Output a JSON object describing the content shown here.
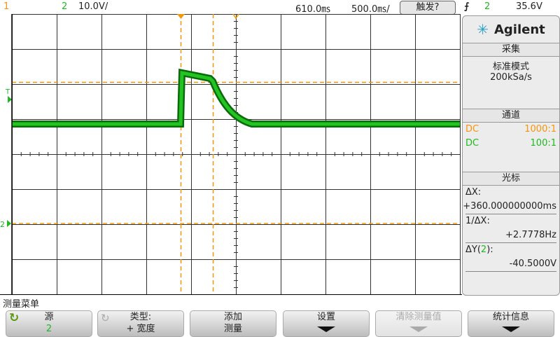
{
  "header": {
    "ch1": "1",
    "ch2": "2",
    "ch2_scale": "10.0V/",
    "time_offset": "610.0㎳",
    "time_scale": "500.0㎳/",
    "trigger_button": "触发?",
    "trigger_slope_icon": "rising-edge-icon",
    "trigger_source": "2",
    "trigger_level": "35.6V"
  },
  "colors": {
    "ch1": "#f5960a",
    "ch2": "#1fb81f",
    "cursor": "#f5960a"
  },
  "display": {
    "trigger_marker": "T",
    "ground_marker": "2"
  },
  "panel": {
    "brand": "Agilent",
    "acquire_title": "采集",
    "acquire_mode": "标准模式",
    "sample_rate": "200kSa/s",
    "channel_title": "通道",
    "channels": [
      {
        "coupling": "DC",
        "probe": "1000:1"
      },
      {
        "coupling": "DC",
        "probe": "100:1"
      }
    ],
    "cursor_title": "光标",
    "dx_label": "ΔX:",
    "dx_value": "+360.000000000ms",
    "inv_dx_label": "1/ΔX:",
    "inv_dx_value": "+2.7778Hz",
    "dy_label_pre": "ΔY(",
    "dy_label_ch": "2",
    "dy_label_post": "):",
    "dy_value": "-40.5000V"
  },
  "menu": {
    "title": "测量菜单",
    "buttons": [
      {
        "line1": "源",
        "line2": "2"
      },
      {
        "line1": "类型:",
        "line2": "+ 宽度"
      },
      {
        "line1": "添加",
        "line2": "测量"
      },
      {
        "line1": "设置"
      },
      {
        "line1": "清除测量值"
      },
      {
        "line1": "统计信息"
      }
    ]
  }
}
